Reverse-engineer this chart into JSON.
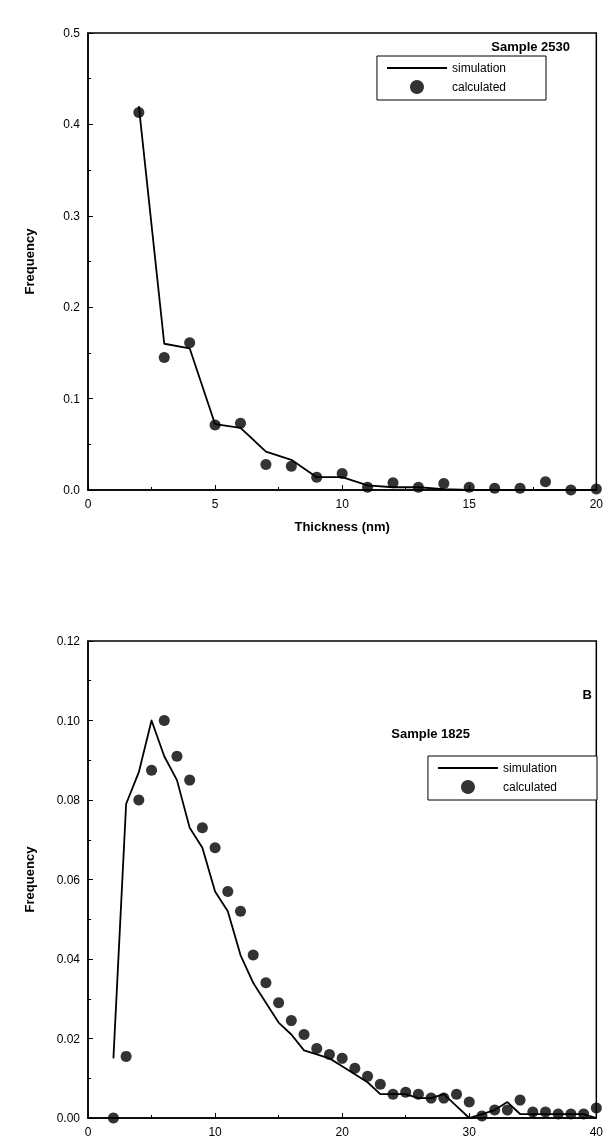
{
  "chart_data": [
    {
      "type": "line",
      "xlabel": "Thickness (nm)",
      "ylabel": "Frequency",
      "annotations": [
        "Sample 2530"
      ],
      "legend": "top right",
      "grid": false,
      "xlim": [
        0,
        20
      ],
      "xticks": [
        0,
        5,
        10,
        15,
        20
      ],
      "ylim": [
        0,
        0.5
      ],
      "yticks": [
        {
          "value": 0,
          "label": "0.0"
        },
        {
          "value": 0.1,
          "label": "0.1"
        },
        {
          "value": 0.2,
          "label": "0.2"
        },
        {
          "value": 0.3,
          "label": "0.3"
        },
        {
          "value": 0.4,
          "label": "0.4"
        },
        {
          "value": 0.5,
          "label": "0.5"
        }
      ],
      "x": [
        2,
        3,
        4,
        5,
        6,
        7,
        8,
        9,
        10,
        11,
        12,
        13,
        14,
        15,
        16,
        17,
        18,
        19,
        20
      ],
      "series": [
        {
          "name": "simulation",
          "type": "line",
          "color": "#000000",
          "marker": "none",
          "line_style": "solid",
          "values": [
            0.42,
            0.16,
            0.155,
            0.072,
            0.068,
            0.042,
            0.033,
            0.014,
            0.014,
            0.005,
            0.003,
            0.003,
            0.001,
            0,
            0,
            0,
            0,
            0,
            0
          ]
        },
        {
          "name": "calculated",
          "type": "scatter",
          "color": "#000000",
          "marker": "circle",
          "values": [
            0.413,
            0.145,
            0.161,
            0.071,
            0.073,
            0.028,
            0.026,
            0.014,
            0.018,
            0.003,
            0.008,
            0.003,
            0.007,
            0.003,
            0.002,
            0.002,
            0.009,
            0,
            0.001
          ]
        }
      ]
    },
    {
      "type": "line",
      "ylabel": "Frequency",
      "annotations": [
        "B",
        "Sample 1825"
      ],
      "legend": "top right",
      "grid": false,
      "xlim": [
        0,
        40
      ],
      "xticks": [
        0,
        10,
        20,
        30,
        40
      ],
      "ylim": [
        0,
        0.12
      ],
      "yticks": [
        {
          "value": 0,
          "label": "0.00"
        },
        {
          "value": 0.02,
          "label": "0.02"
        },
        {
          "value": 0.04,
          "label": "0.04"
        },
        {
          "value": 0.06,
          "label": "0.06"
        },
        {
          "value": 0.08,
          "label": "0.08"
        },
        {
          "value": 0.1,
          "label": "0.10"
        },
        {
          "value": 0.12,
          "label": "0.12"
        }
      ],
      "x": [
        2,
        3,
        4,
        5,
        6,
        7,
        8,
        9,
        10,
        11,
        12,
        13,
        14,
        15,
        16,
        17,
        18,
        19,
        20,
        21,
        22,
        23,
        24,
        25,
        26,
        27,
        28,
        29,
        30,
        31,
        32,
        33,
        34,
        35,
        36,
        37,
        38,
        39,
        40
      ],
      "series": [
        {
          "name": "simulation",
          "type": "line",
          "color": "#000000",
          "marker": "none",
          "line_style": "solid",
          "values": [
            0.015,
            0.079,
            0.087,
            0.1,
            0.091,
            0.085,
            0.073,
            0.068,
            0.057,
            0.052,
            0.041,
            0.034,
            0.029,
            0.024,
            0.021,
            0.017,
            0.016,
            0.015,
            0.013,
            0.011,
            0.009,
            0.006,
            0.006,
            0.006,
            0.005,
            0.005,
            0.006,
            0.003,
            0,
            0.001,
            0.002,
            0.004,
            0.001,
            0.001,
            0.001,
            0.001,
            0.001,
            0.001,
            0
          ]
        },
        {
          "name": "calculated",
          "type": "scatter",
          "color": "#000000",
          "marker": "circle",
          "values": [
            0,
            0.0155,
            0.08,
            0.0875,
            0.1,
            0.091,
            0.085,
            0.073,
            0.068,
            0.057,
            0.052,
            0.041,
            0.034,
            0.029,
            0.0245,
            0.021,
            0.0175,
            0.016,
            0.015,
            0.0125,
            0.0105,
            0.0085,
            0.006,
            0.0065,
            0.006,
            0.005,
            0.005,
            0.006,
            0.004,
            0.0005,
            0.002,
            0.002,
            0.0045,
            0.0015,
            0.0015,
            0.001,
            0.001,
            0.001,
            0.0025
          ]
        }
      ]
    }
  ]
}
